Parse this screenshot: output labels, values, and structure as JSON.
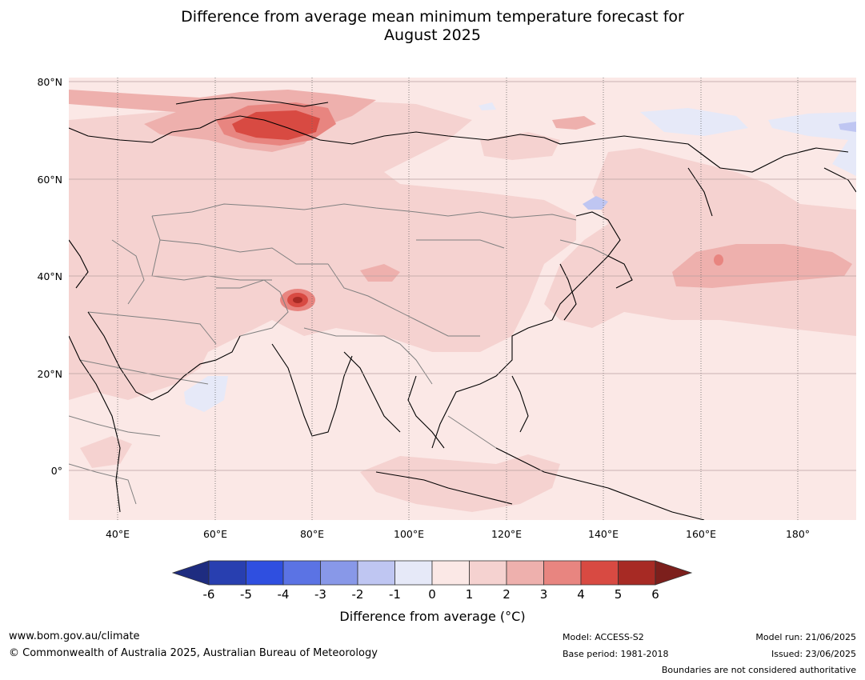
{
  "title_line1": "Difference from average mean minimum temperature forecast for",
  "title_line2": "August 2025",
  "map": {
    "lat_labels": [
      "80°N",
      "60°N",
      "40°N",
      "20°N",
      "0°"
    ],
    "lon_labels": [
      "40°E",
      "60°E",
      "80°E",
      "100°E",
      "120°E",
      "140°E",
      "160°E",
      "180°"
    ],
    "extent": {
      "lon_min": 30,
      "lon_max": 192,
      "lat_min": -10,
      "lat_max": 81
    }
  },
  "colorbar": {
    "label": "Difference from average ($^\\circ$C)",
    "label_display": "Difference from average (°C)",
    "ticks": [
      "-6",
      "-5",
      "-4",
      "-3",
      "-2",
      "-1",
      "0",
      "1",
      "2",
      "3",
      "4",
      "5",
      "6"
    ],
    "colors": [
      "#1e2c80",
      "#283fb0",
      "#2f4fe0",
      "#5b73e4",
      "#8898e8",
      "#bfc6f2",
      "#e6e9f8",
      "#fbe8e6",
      "#f5d2d0",
      "#eeb0ad",
      "#e88580",
      "#d84a42",
      "#a72a24",
      "#7c1f1c"
    ]
  },
  "footer": {
    "website": "www.bom.gov.au/climate",
    "copyright": "© Commonwealth of Australia 2025, Australian Bureau of Meteorology",
    "model": "Model: ACCESS-S2",
    "base_period": "Base period: 1981-2018",
    "model_run": "Model run: 21/06/2025",
    "issued": "Issued: 23/06/2025",
    "disclaimer": "Boundaries are not considered authoritative"
  }
}
